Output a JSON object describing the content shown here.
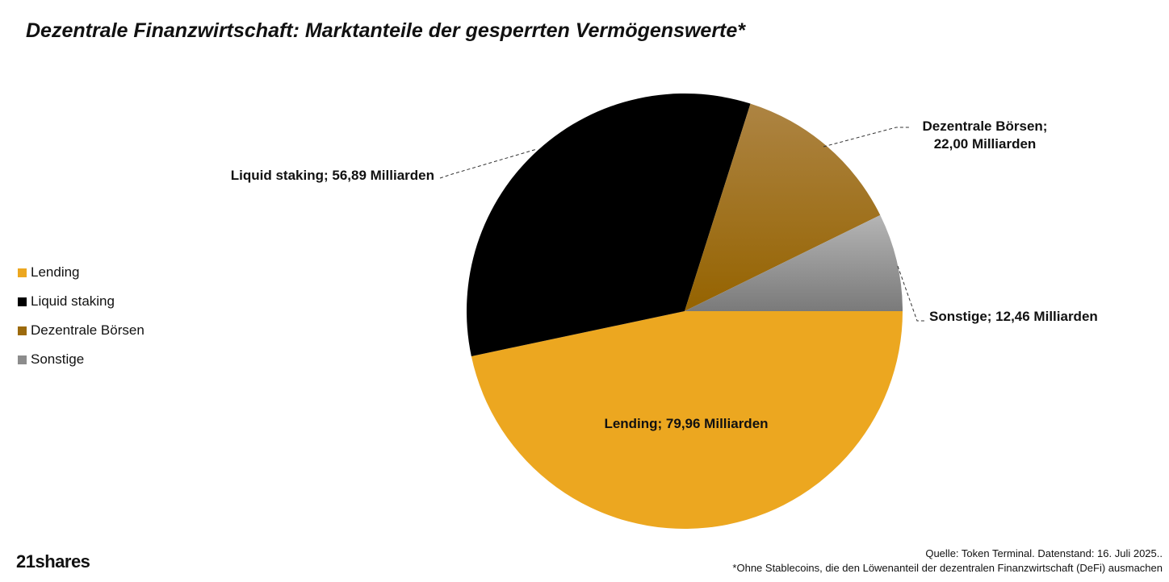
{
  "chart_data": {
    "type": "pie",
    "title": "Dezentrale Finanzwirtschaft: Marktanteile der gesperrten Vermögenswerte*",
    "unit": "Milliarden",
    "legend_position": "left",
    "slices": [
      {
        "name": "Lending",
        "value": 79.96,
        "label": "Lending; 79,96 Milliarden",
        "color": "#eca720"
      },
      {
        "name": "Liquid staking",
        "value": 56.89,
        "label": "Liquid staking; 56,89 Milliarden",
        "color": "#000000"
      },
      {
        "name": "Dezentrale Börsen",
        "value": 22.0,
        "label_line1": "Dezentrale Börsen;",
        "label_line2": "22,00 Milliarden",
        "color": "#9c6a0c"
      },
      {
        "name": "Sonstige",
        "value": 12.46,
        "label": "Sonstige; 12,46 Milliarden",
        "color": "#8c8c8c"
      }
    ]
  },
  "footer": {
    "source": "Quelle: Token Terminal. Datenstand: 16. Juli 2025..",
    "note": "*Ohne Stablecoins, die den Löwenanteil der dezentralen Finanzwirtschaft (DeFi) ausmachen"
  },
  "brand": {
    "logo_text": "21shares"
  }
}
